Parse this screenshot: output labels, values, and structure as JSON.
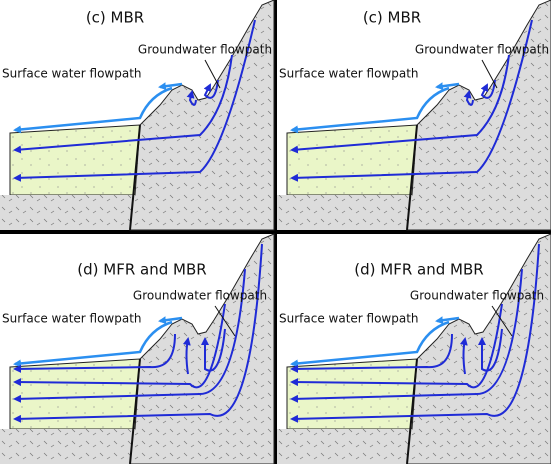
{
  "panels": [
    {
      "title": "(c) MBR",
      "groundwater_label": "Groundwater flowpath",
      "surface_label": "Surface water flowpath"
    },
    {
      "title": "(c) MBR",
      "groundwater_label": "Groundwater flowpath",
      "surface_label": "Surface water flowpath"
    },
    {
      "title": "(d) MFR and MBR",
      "groundwater_label": "Groundwater flowpath",
      "surface_label": "Surface water flowpath"
    },
    {
      "title": "(d) MFR and MBR",
      "groundwater_label": "Groundwater flowpath",
      "surface_label": "Surface water flowpath"
    }
  ]
}
